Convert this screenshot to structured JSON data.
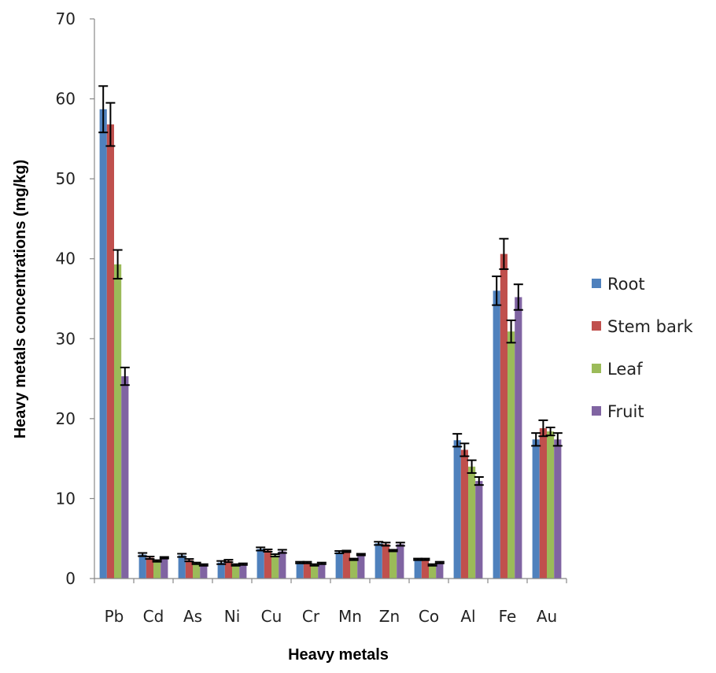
{
  "chart_data": {
    "type": "bar",
    "title": "",
    "xlabel": "Heavy metals",
    "ylabel": "Heavy metals concentrations (mg/kg)",
    "ylim": [
      0,
      70
    ],
    "yticks": [
      0,
      10,
      20,
      30,
      40,
      50,
      60,
      70
    ],
    "grid": false,
    "legend_position": "right",
    "categories": [
      "Pb",
      "Cd",
      "As",
      "Ni",
      "Cu",
      "Cr",
      "Mn",
      "Zn",
      "Co",
      "Al",
      "Fe",
      "Au"
    ],
    "series": [
      {
        "name": "Root",
        "color": "#4F81BD",
        "values": [
          58.7,
          3.0,
          2.9,
          2.0,
          3.7,
          2.0,
          3.3,
          4.4,
          2.4,
          17.3,
          36.0,
          17.4
        ],
        "errors": [
          2.9,
          0.2,
          0.2,
          0.2,
          0.2,
          0.1,
          0.15,
          0.2,
          0.1,
          0.8,
          1.8,
          0.8
        ]
      },
      {
        "name": "Stem bark",
        "color": "#C0504D",
        "values": [
          56.8,
          2.6,
          2.3,
          2.2,
          3.5,
          2.0,
          3.4,
          4.3,
          2.4,
          16.1,
          40.6,
          18.8
        ],
        "errors": [
          2.7,
          0.15,
          0.15,
          0.15,
          0.15,
          0.1,
          0.1,
          0.2,
          0.1,
          0.8,
          1.9,
          1.0
        ]
      },
      {
        "name": "Leaf",
        "color": "#9BBB59",
        "values": [
          39.3,
          2.2,
          1.9,
          1.7,
          2.9,
          1.7,
          2.4,
          3.5,
          1.7,
          14.0,
          30.9,
          18.4
        ],
        "errors": [
          1.8,
          0.1,
          0.1,
          0.1,
          0.15,
          0.1,
          0.1,
          0.1,
          0.1,
          0.8,
          1.4,
          0.5
        ]
      },
      {
        "name": "Fruit",
        "color": "#8064A2",
        "values": [
          25.3,
          2.6,
          1.7,
          1.8,
          3.4,
          1.9,
          3.0,
          4.3,
          2.0,
          12.2,
          35.2,
          17.4
        ],
        "errors": [
          1.1,
          0.1,
          0.1,
          0.1,
          0.2,
          0.1,
          0.1,
          0.2,
          0.1,
          0.5,
          1.6,
          0.8
        ]
      }
    ]
  }
}
